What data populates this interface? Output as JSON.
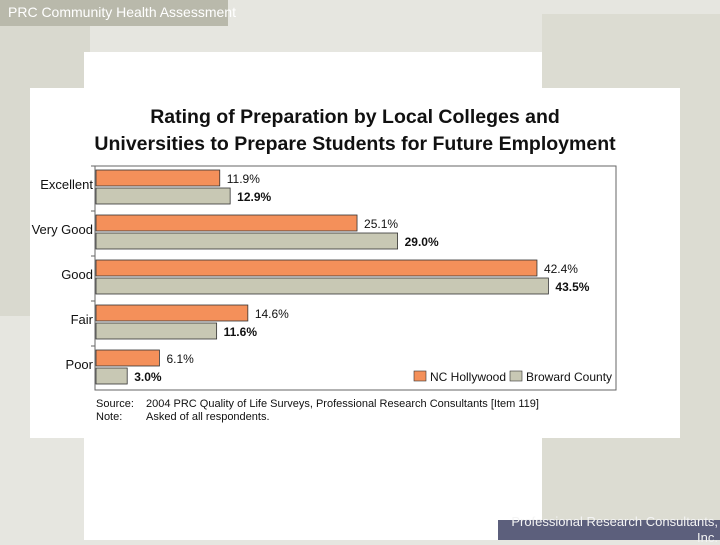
{
  "header": {
    "text": "PRC Community Health Assessment"
  },
  "footer": {
    "text": "Professional Research Consultants,",
    "text2": "Inc."
  },
  "colors": {
    "series1": "#f4905a",
    "series2": "#c8c8b4",
    "bar_stroke": "#333333",
    "axis": "#666666"
  },
  "chart_data": {
    "type": "bar",
    "orientation": "horizontal",
    "title_line1": "Rating of Preparation by Local Colleges and",
    "title_line2": "Universities to Prepare Students for Future Employment",
    "categories": [
      "Excellent",
      "Very Good",
      "Good",
      "Fair",
      "Poor"
    ],
    "series": [
      {
        "name": "NC Hollywood",
        "values": [
          11.9,
          25.1,
          42.4,
          14.6,
          6.1
        ],
        "labels": [
          "11.9%",
          "25.1%",
          "42.4%",
          "14.6%",
          "6.1%"
        ]
      },
      {
        "name": "Broward County",
        "values": [
          12.9,
          29.0,
          43.5,
          11.6,
          3.0
        ],
        "labels": [
          "12.9%",
          "29.0%",
          "43.5%",
          "11.6%",
          "3.0%"
        ]
      }
    ],
    "xlim": [
      0,
      50
    ],
    "legend": "bottom-right",
    "grid": false
  },
  "notes": {
    "source_key": "Source:",
    "source_text": "2004 PRC Quality of Life Surveys, Professional Research Consultants [Item 119]",
    "note_key": "Note:",
    "note_text": "Asked of all respondents."
  }
}
